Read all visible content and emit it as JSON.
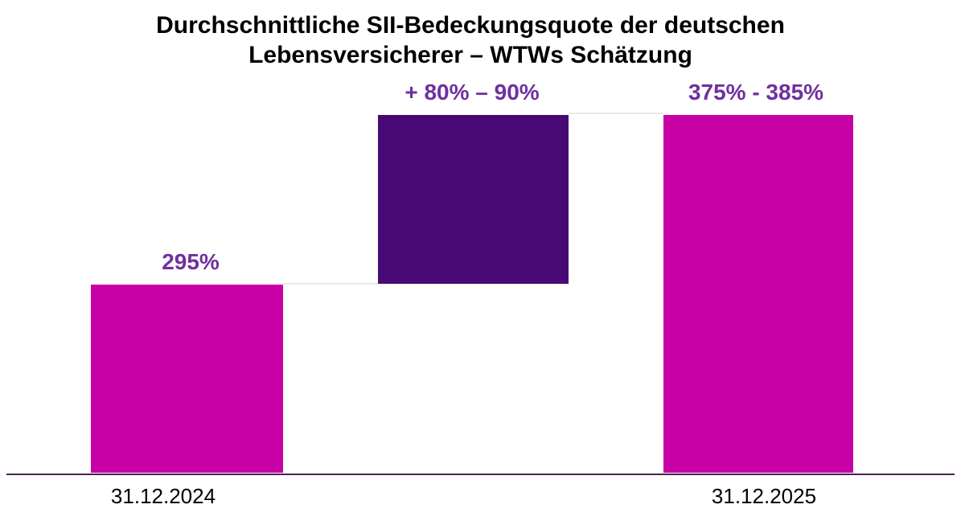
{
  "chart_data": {
    "type": "bar",
    "subtype": "waterfall",
    "title": "Durchschnittliche SII-Bedeckungsquote der deutschen Lebensversicherer – WTWs Schätzung",
    "title_lines": [
      "Durchschnittliche SII-Bedeckungsquote der deutschen",
      "Lebensversicherer – WTWs Schätzung"
    ],
    "categories": [
      "31.12.2024",
      "31.12.2025"
    ],
    "x_tick_labels": [
      "31.12.2024",
      "31.12.2025"
    ],
    "bars": [
      {
        "name": "start-2024",
        "data_label": "295%",
        "value": 295,
        "range": [
          295,
          295
        ],
        "base": 0,
        "category": "31.12.2024",
        "color": "#C701A6"
      },
      {
        "name": "increase-estimate",
        "data_label": "+ 80% – 90%",
        "value": 85,
        "range": [
          80,
          90
        ],
        "base": 295,
        "category": "",
        "color": "#480A75"
      },
      {
        "name": "end-2025",
        "data_label": "375% - 385%",
        "value": 380,
        "range": [
          375,
          385
        ],
        "base": 0,
        "category": "31.12.2025",
        "color": "#C701A6"
      }
    ],
    "data_label_color": "#7030A0",
    "title_color": "#000000",
    "axis_line_color": "#45234F",
    "connector_line_color": "#E9E7EA",
    "background_color": "#FFFFFF",
    "grid": false,
    "legend_position": "none",
    "y_axis": "hidden",
    "ylim": [
      0,
      395
    ]
  }
}
